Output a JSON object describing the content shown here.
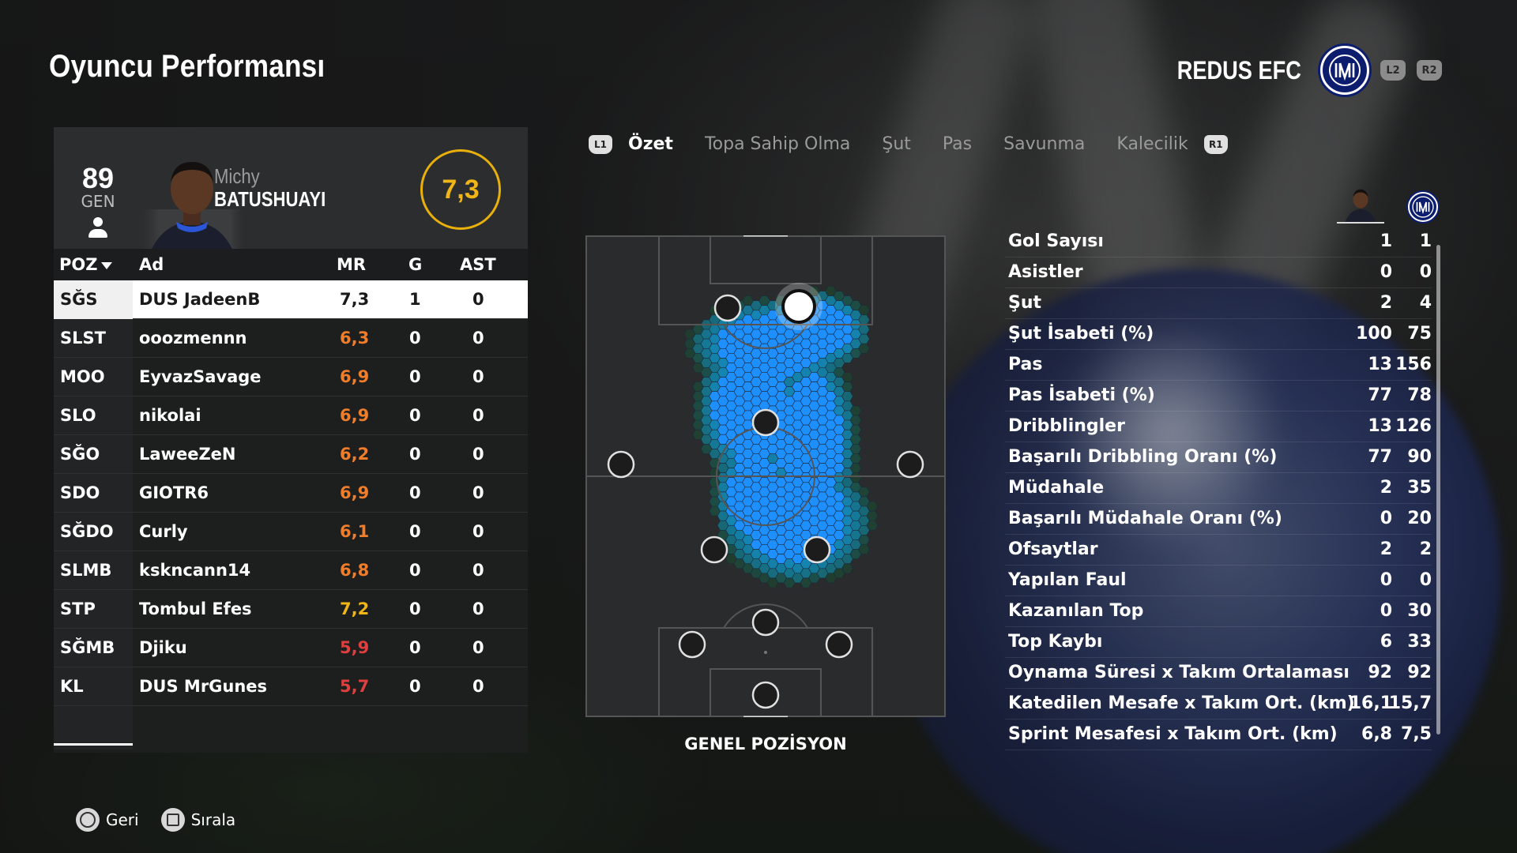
{
  "page": {
    "title": "Oyuncu Performansı"
  },
  "team": {
    "name": "REDUS EFC",
    "crest_icon": "inter-crest-icon",
    "tag_l2": "L2",
    "tag_r2": "R2",
    "crest_color": "#0d1d6e"
  },
  "player": {
    "overall": "89",
    "overall_label": "GEN",
    "first_name": "Michy",
    "last_name": "BATUSHUAYI",
    "rating": "7,3"
  },
  "table": {
    "headers": {
      "poz": "POZ",
      "ad": "Ad",
      "mr": "MR",
      "g": "G",
      "ast": "AST"
    },
    "rows": [
      {
        "poz": "SĞS",
        "ad": "DUS JadeenB",
        "mr": "7,3",
        "g": "1",
        "ast": "0"
      },
      {
        "poz": "SLST",
        "ad": "ooozmennn",
        "mr": "6,3",
        "g": "0",
        "ast": "0"
      },
      {
        "poz": "MOO",
        "ad": "EyvazSavage",
        "mr": "6,9",
        "g": "0",
        "ast": "0"
      },
      {
        "poz": "SLO",
        "ad": "nikolai",
        "mr": "6,9",
        "g": "0",
        "ast": "0"
      },
      {
        "poz": "SĞO",
        "ad": "LaweeZeN",
        "mr": "6,2",
        "g": "0",
        "ast": "0"
      },
      {
        "poz": "SDO",
        "ad": "GIOTR6",
        "mr": "6,9",
        "g": "0",
        "ast": "0"
      },
      {
        "poz": "SĞDO",
        "ad": "Curly",
        "mr": "6,1",
        "g": "0",
        "ast": "0"
      },
      {
        "poz": "SLMB",
        "ad": "kskncann14",
        "mr": "6,8",
        "g": "0",
        "ast": "0"
      },
      {
        "poz": "STP",
        "ad": "Tombul Efes",
        "mr": "7,2",
        "g": "0",
        "ast": "0"
      },
      {
        "poz": "SĞMB",
        "ad": "Djiku",
        "mr": "5,9",
        "g": "0",
        "ast": "0"
      },
      {
        "poz": "KL",
        "ad": "DUS MrGunes",
        "mr": "5,7",
        "g": "0",
        "ast": "0"
      }
    ],
    "colors": {
      "high": "#f0b617",
      "mid": "#f07d2a",
      "low": "#e03f3f"
    }
  },
  "tabs": {
    "left_tag": "L1",
    "right_tag": "R1",
    "items": [
      "Özet",
      "Topa Sahip Olma",
      "Şut",
      "Pas",
      "Savunma",
      "Kalecilik"
    ],
    "active": "Özet"
  },
  "pitch": {
    "label": "GENEL POZİSYON",
    "heat_color": "#1e8fff"
  },
  "stats": [
    {
      "label": "Gol Sayısı",
      "player": "1",
      "team": "1"
    },
    {
      "label": "Asistler",
      "player": "0",
      "team": "0"
    },
    {
      "label": "Şut",
      "player": "2",
      "team": "4"
    },
    {
      "label": "Şut İsabeti (%)",
      "player": "100",
      "team": "75"
    },
    {
      "label": "Pas",
      "player": "13",
      "team": "156"
    },
    {
      "label": "Pas İsabeti (%)",
      "player": "77",
      "team": "78"
    },
    {
      "label": "Dribblingler",
      "player": "13",
      "team": "126"
    },
    {
      "label": "Başarılı Dribbling Oranı (%)",
      "player": "77",
      "team": "90"
    },
    {
      "label": "Müdahale",
      "player": "2",
      "team": "35"
    },
    {
      "label": "Başarılı Müdahale Oranı (%)",
      "player": "0",
      "team": "20"
    },
    {
      "label": "Ofsaytlar",
      "player": "2",
      "team": "2"
    },
    {
      "label": "Yapılan Faul",
      "player": "0",
      "team": "0"
    },
    {
      "label": "Kazanılan Top",
      "player": "0",
      "team": "30"
    },
    {
      "label": "Top Kaybı",
      "player": "6",
      "team": "33"
    },
    {
      "label": "Oynama Süresi x Takım Ortalaması",
      "player": "92",
      "team": "92"
    },
    {
      "label": "Katedilen Mesafe x Takım Ort. (km)",
      "player": "16,1",
      "team": "15,7"
    },
    {
      "label": "Sprint Mesafesi x Takım Ort. (km)",
      "player": "6,8",
      "team": "7,5"
    }
  ],
  "footer": {
    "back_label": "Geri",
    "sort_label": "Sırala",
    "back_icon": "circle-button-icon",
    "sort_icon": "square-button-icon"
  }
}
